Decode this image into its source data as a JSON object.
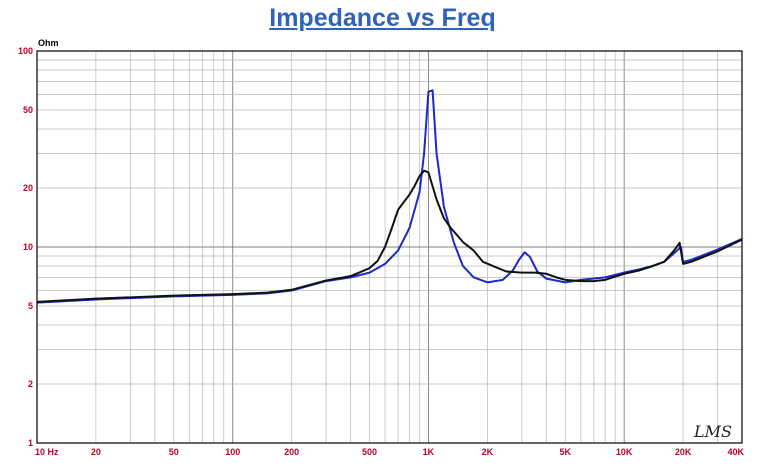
{
  "chart_data": {
    "type": "line",
    "title": "Impedance vs Freq",
    "ylabel": "Ohm",
    "xlabel": "",
    "x_scale": "log",
    "y_scale": "log",
    "xlim": [
      10,
      40000
    ],
    "ylim": [
      1,
      100
    ],
    "grid": true,
    "x_ticks": [
      {
        "value": 10,
        "label": "10  Hz"
      },
      {
        "value": 20,
        "label": "20"
      },
      {
        "value": 50,
        "label": "50"
      },
      {
        "value": 100,
        "label": "100"
      },
      {
        "value": 200,
        "label": "200"
      },
      {
        "value": 500,
        "label": "500"
      },
      {
        "value": 1000,
        "label": "1K"
      },
      {
        "value": 2000,
        "label": "2K"
      },
      {
        "value": 5000,
        "label": "5K"
      },
      {
        "value": 10000,
        "label": "10K"
      },
      {
        "value": 20000,
        "label": "20K"
      },
      {
        "value": 40000,
        "label": "40K"
      }
    ],
    "y_ticks": [
      {
        "value": 100,
        "label": "100"
      },
      {
        "value": 50,
        "label": "50"
      },
      {
        "value": 20,
        "label": "20"
      },
      {
        "value": 10,
        "label": "10"
      },
      {
        "value": 5,
        "label": "5"
      },
      {
        "value": 2,
        "label": "2"
      },
      {
        "value": 1,
        "label": "1"
      }
    ],
    "series": [
      {
        "color": "#1a2bc8",
        "points": [
          [
            10,
            5.2
          ],
          [
            20,
            5.4
          ],
          [
            50,
            5.6
          ],
          [
            100,
            5.7
          ],
          [
            150,
            5.8
          ],
          [
            200,
            6.0
          ],
          [
            300,
            6.7
          ],
          [
            400,
            7.0
          ],
          [
            500,
            7.4
          ],
          [
            600,
            8.2
          ],
          [
            700,
            9.6
          ],
          [
            800,
            12.5
          ],
          [
            900,
            19
          ],
          [
            950,
            30
          ],
          [
            1000,
            62
          ],
          [
            1050,
            63
          ],
          [
            1100,
            30
          ],
          [
            1200,
            16
          ],
          [
            1350,
            10.5
          ],
          [
            1500,
            8.0
          ],
          [
            1700,
            7.0
          ],
          [
            2000,
            6.6
          ],
          [
            2400,
            6.8
          ],
          [
            2700,
            7.6
          ],
          [
            2900,
            8.6
          ],
          [
            3100,
            9.4
          ],
          [
            3300,
            8.9
          ],
          [
            3600,
            7.5
          ],
          [
            4000,
            6.9
          ],
          [
            5000,
            6.6
          ],
          [
            6000,
            6.8
          ],
          [
            8000,
            7.0
          ],
          [
            10000,
            7.4
          ],
          [
            12000,
            7.7
          ],
          [
            14000,
            8.0
          ],
          [
            16000,
            8.4
          ],
          [
            18000,
            9.3
          ],
          [
            19500,
            10.0
          ],
          [
            20000,
            8.4
          ],
          [
            22000,
            8.6
          ],
          [
            30000,
            9.7
          ],
          [
            40000,
            11.0
          ]
        ]
      },
      {
        "color": "#111111",
        "points": [
          [
            10,
            5.25
          ],
          [
            20,
            5.45
          ],
          [
            50,
            5.65
          ],
          [
            100,
            5.75
          ],
          [
            150,
            5.85
          ],
          [
            200,
            6.05
          ],
          [
            300,
            6.75
          ],
          [
            400,
            7.1
          ],
          [
            500,
            7.8
          ],
          [
            550,
            8.5
          ],
          [
            600,
            10.0
          ],
          [
            650,
            12.5
          ],
          [
            700,
            15.5
          ],
          [
            750,
            17.0
          ],
          [
            800,
            18.5
          ],
          [
            850,
            20.5
          ],
          [
            900,
            23.0
          ],
          [
            950,
            24.5
          ],
          [
            1000,
            24.0
          ],
          [
            1100,
            17.5
          ],
          [
            1200,
            14.0
          ],
          [
            1300,
            12.5
          ],
          [
            1400,
            11.5
          ],
          [
            1500,
            10.6
          ],
          [
            1700,
            9.6
          ],
          [
            1900,
            8.4
          ],
          [
            2200,
            7.9
          ],
          [
            2500,
            7.5
          ],
          [
            3000,
            7.4
          ],
          [
            3500,
            7.4
          ],
          [
            4000,
            7.3
          ],
          [
            4500,
            7.0
          ],
          [
            5000,
            6.8
          ],
          [
            6000,
            6.7
          ],
          [
            7000,
            6.7
          ],
          [
            8000,
            6.8
          ],
          [
            10000,
            7.3
          ],
          [
            12000,
            7.6
          ],
          [
            14000,
            8.0
          ],
          [
            16000,
            8.4
          ],
          [
            18000,
            9.6
          ],
          [
            19200,
            10.5
          ],
          [
            20000,
            8.2
          ],
          [
            22000,
            8.4
          ],
          [
            30000,
            9.5
          ],
          [
            40000,
            10.9
          ]
        ]
      }
    ],
    "watermark": "LMS"
  }
}
